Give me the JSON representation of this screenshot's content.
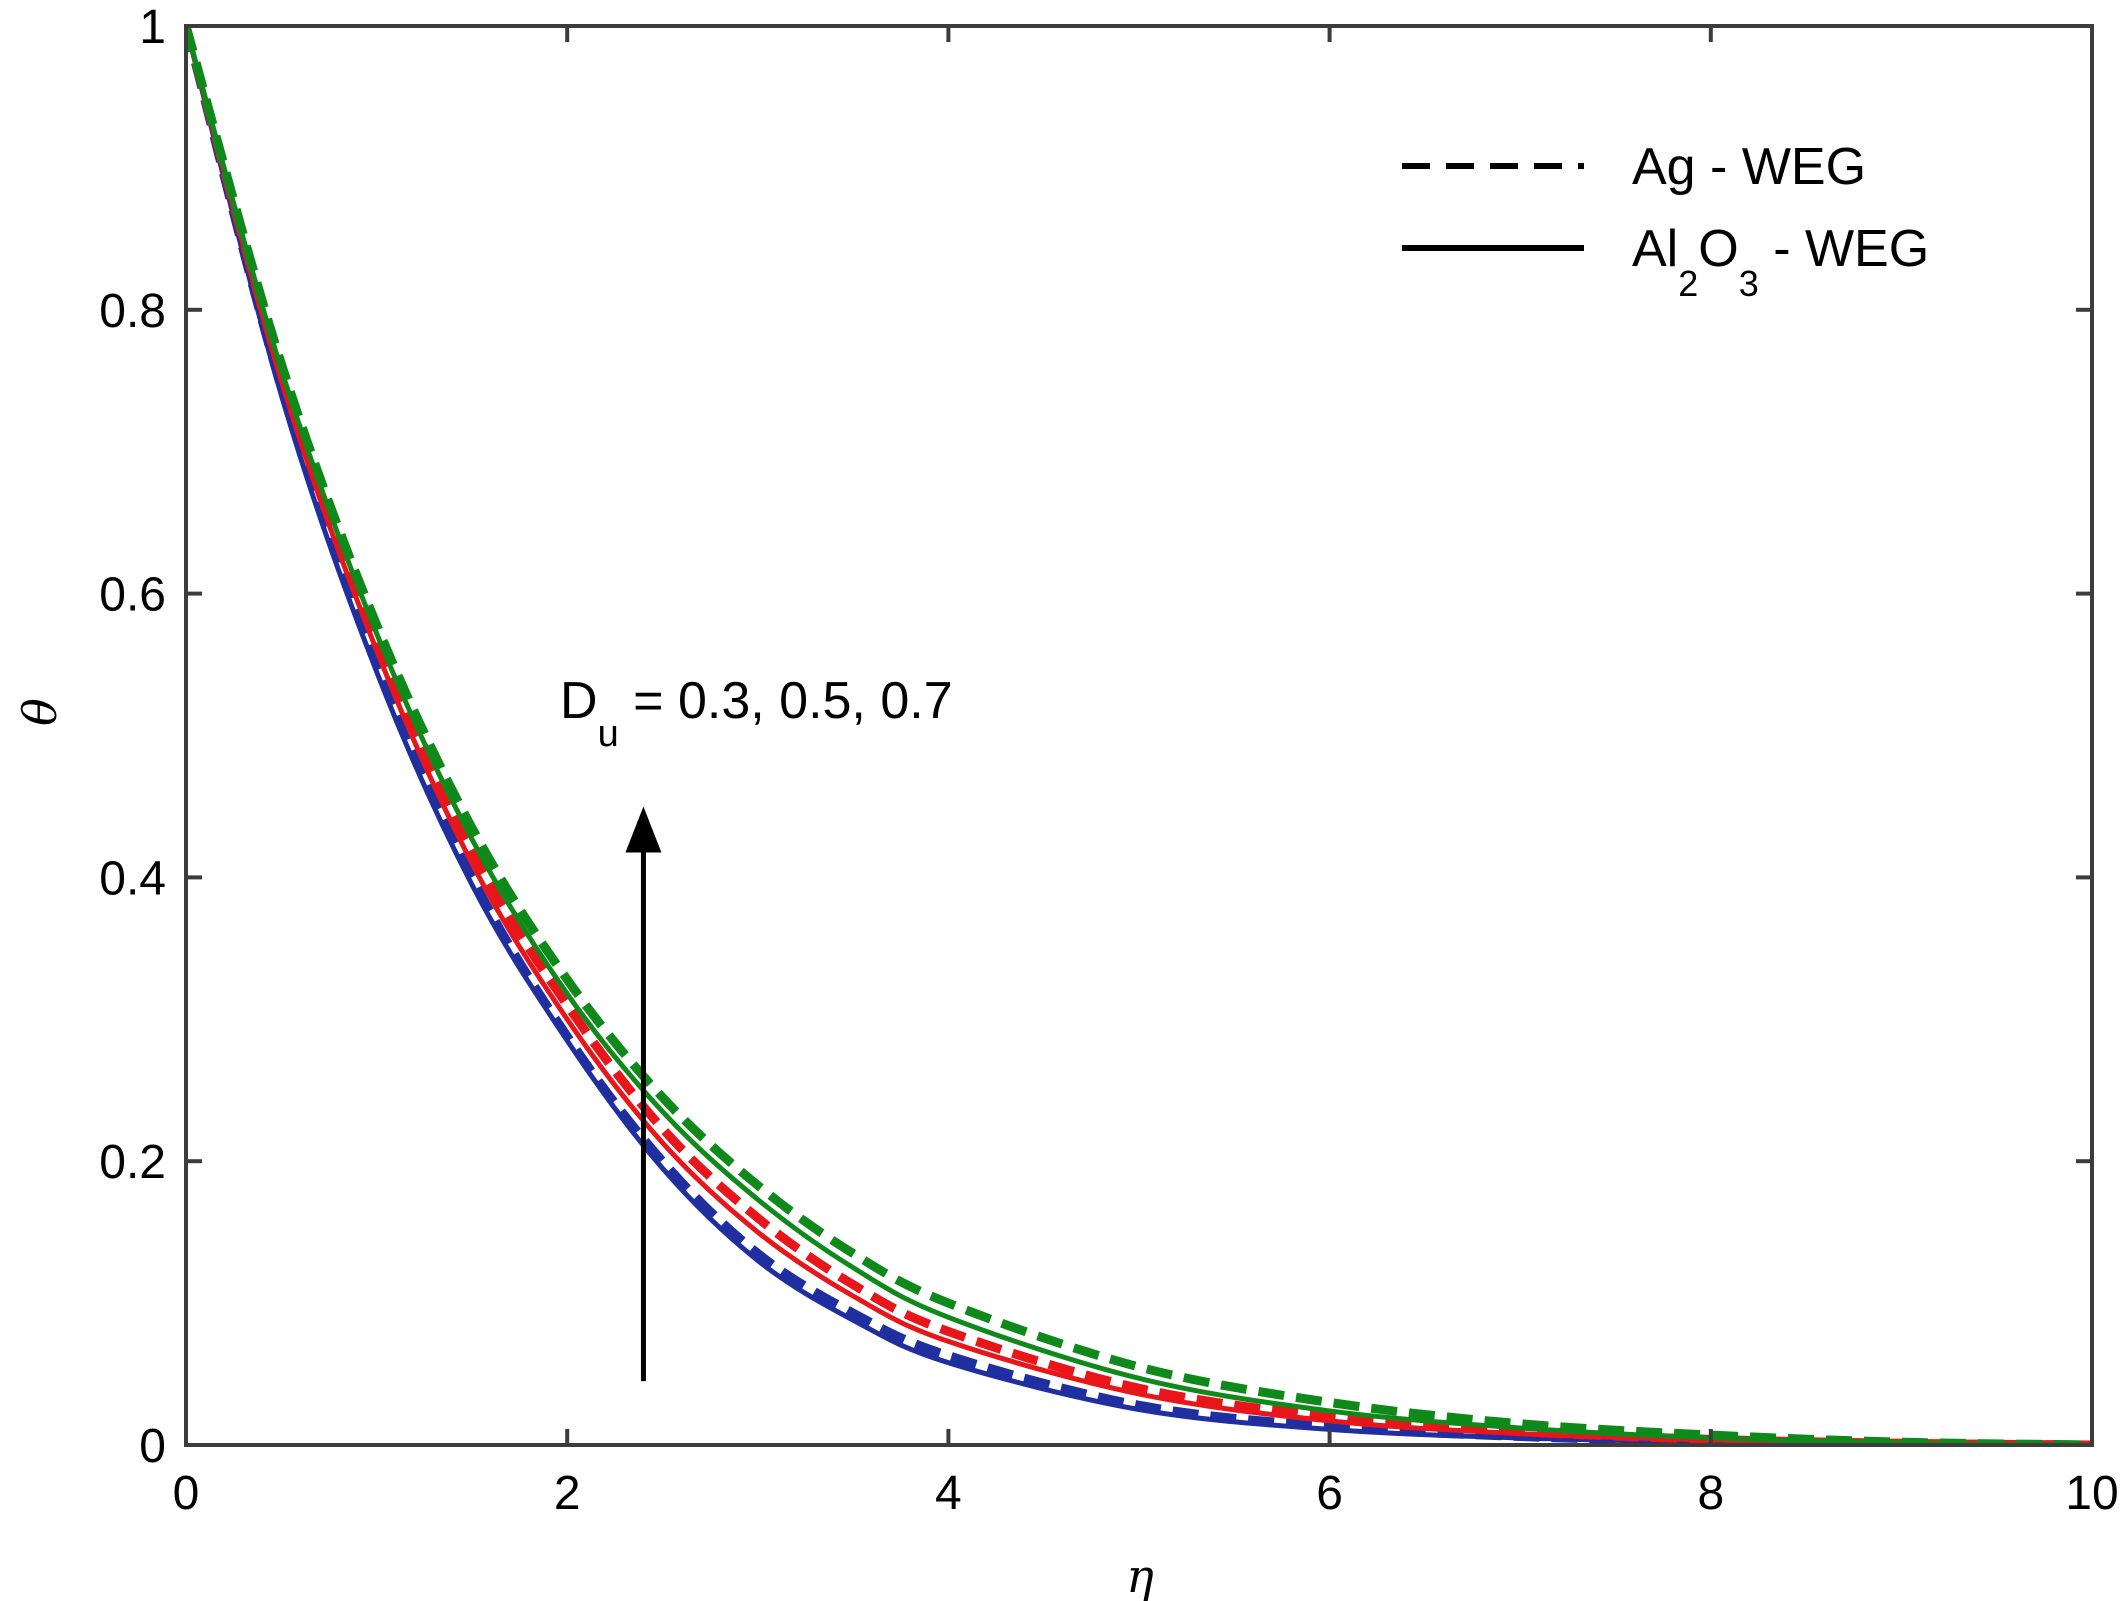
{
  "chart_data": {
    "type": "line",
    "title": "",
    "xlabel": "η",
    "ylabel": "θ",
    "xlim": [
      0,
      10
    ],
    "ylim": [
      0,
      1
    ],
    "xticks": [
      "0",
      "2",
      "4",
      "6",
      "8",
      "10"
    ],
    "yticks": [
      "0",
      "0.2",
      "0.4",
      "0.6",
      "0.8",
      "1"
    ],
    "grid": false,
    "legend_position": "top-right",
    "legend": [
      {
        "style": "dashed",
        "text": "Ag - WEG"
      },
      {
        "style": "solid",
        "text_parts": [
          "Al",
          "2",
          "O",
          "3",
          " - WEG"
        ]
      }
    ],
    "annotation": {
      "text_parts": [
        "D",
        "u",
        " = 0.3, 0.5, 0.7"
      ],
      "arrow_x": 2.4,
      "arrow_from_y": 0.045,
      "arrow_to_y": 0.45
    },
    "colors": {
      "blue": "#1f2fa0",
      "red": "#e8161b",
      "green": "#0f8a1a"
    },
    "x": [
      0,
      0.5,
      1,
      1.5,
      2,
      2.5,
      3,
      3.5,
      4,
      5,
      6,
      7,
      8,
      9,
      10
    ],
    "series": [
      {
        "color": "blue",
        "style": "solid",
        "values": [
          1,
          0.74,
          0.545,
          0.395,
          0.285,
          0.195,
          0.13,
          0.088,
          0.058,
          0.025,
          0.011,
          0.005,
          0.002,
          0.0005,
          0
        ]
      },
      {
        "color": "blue",
        "style": "dashed",
        "values": [
          1,
          0.745,
          0.55,
          0.4,
          0.288,
          0.2,
          0.135,
          0.093,
          0.063,
          0.028,
          0.013,
          0.006,
          0.0025,
          0.0008,
          0
        ]
      },
      {
        "color": "red",
        "style": "solid",
        "values": [
          1,
          0.75,
          0.56,
          0.41,
          0.3,
          0.213,
          0.15,
          0.105,
          0.073,
          0.036,
          0.017,
          0.008,
          0.0035,
          0.001,
          0
        ]
      },
      {
        "color": "red",
        "style": "dashed",
        "values": [
          1,
          0.755,
          0.565,
          0.418,
          0.31,
          0.223,
          0.16,
          0.113,
          0.08,
          0.04,
          0.02,
          0.0095,
          0.004,
          0.0012,
          0
        ]
      },
      {
        "color": "green",
        "style": "solid",
        "values": [
          1,
          0.758,
          0.572,
          0.427,
          0.318,
          0.235,
          0.173,
          0.125,
          0.09,
          0.047,
          0.024,
          0.012,
          0.005,
          0.0015,
          0
        ]
      },
      {
        "color": "green",
        "style": "dashed",
        "values": [
          1,
          0.762,
          0.578,
          0.435,
          0.328,
          0.245,
          0.183,
          0.135,
          0.1,
          0.055,
          0.03,
          0.015,
          0.007,
          0.002,
          0
        ]
      }
    ]
  }
}
